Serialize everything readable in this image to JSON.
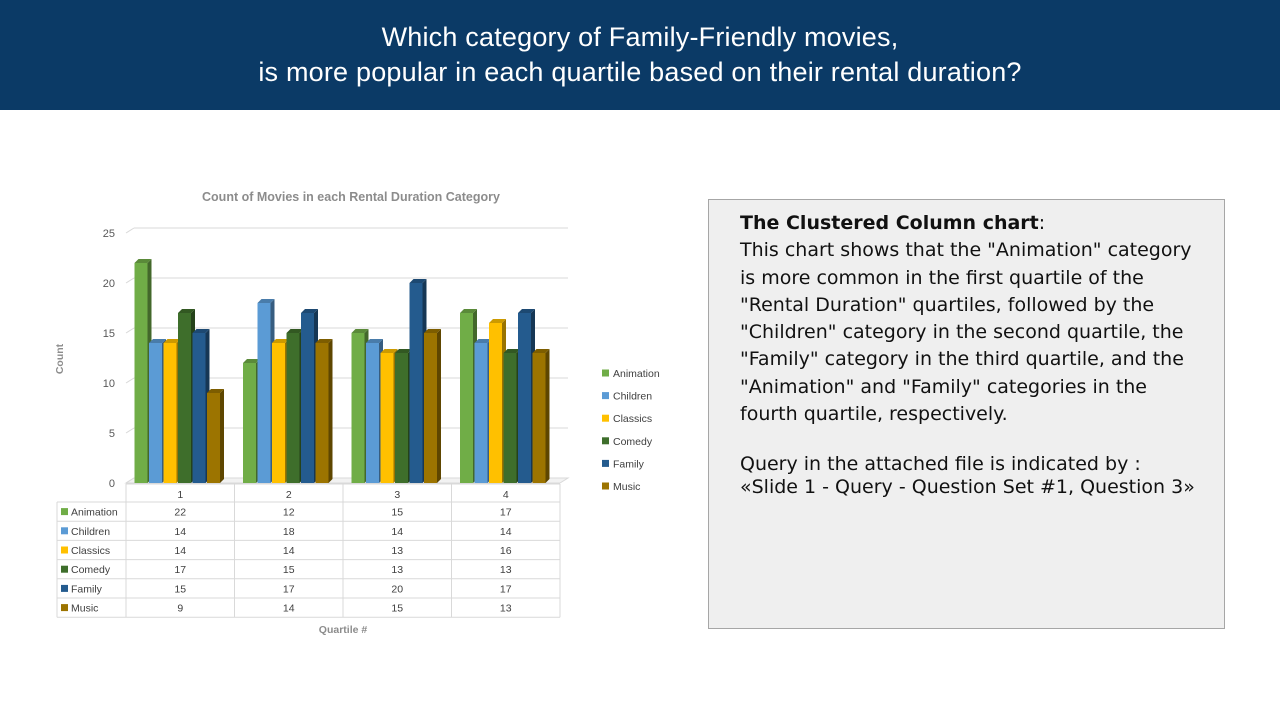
{
  "header": {
    "line1": "Which category of Family-Friendly movies,",
    "line2": "is more popular in each quartile based on their rental duration?"
  },
  "colors": {
    "header_bg": "#0b3a66",
    "Animation": "#70ad47",
    "Children": "#5b9bd5",
    "Classics": "#ffc000",
    "Comedy": "#3e6e2b",
    "Family": "#245b8e",
    "Music": "#9c7400"
  },
  "chart_data": {
    "type": "bar",
    "title": "Count of Movies in each Rental Duration Category",
    "xlabel": "Quartile #",
    "ylabel": "Count",
    "ylim": [
      0,
      25
    ],
    "yticks": [
      0,
      5,
      10,
      15,
      20,
      25
    ],
    "categories": [
      "1",
      "2",
      "3",
      "4"
    ],
    "series": [
      {
        "name": "Animation",
        "values": [
          22,
          12,
          15,
          17
        ]
      },
      {
        "name": "Children",
        "values": [
          14,
          18,
          14,
          14
        ]
      },
      {
        "name": "Classics",
        "values": [
          14,
          14,
          13,
          16
        ]
      },
      {
        "name": "Comedy",
        "values": [
          17,
          15,
          13,
          13
        ]
      },
      {
        "name": "Family",
        "values": [
          15,
          17,
          20,
          17
        ]
      },
      {
        "name": "Music",
        "values": [
          9,
          14,
          15,
          13
        ]
      }
    ],
    "legend": "right",
    "grid": true,
    "data_table": true
  },
  "textbox": {
    "heading": "The Clustered  Column chart",
    "heading_suffix": ":",
    "lines": [
      "This chart shows that the \"Animation\" category",
      "is more common in the first quartile of the",
      "\"Rental Duration\" quartiles, followed by the",
      "\"Children\" category in the second quartile, the",
      "\"Family\" category in the third quartile, and the",
      "\"Animation\" and \"Family\" categories in the",
      "fourth quartile, respectively."
    ],
    "query_line1": "Query in the attached file is indicated by :",
    "query_line2": "«Slide 1 - Query - Question Set #1, Question 3»"
  }
}
